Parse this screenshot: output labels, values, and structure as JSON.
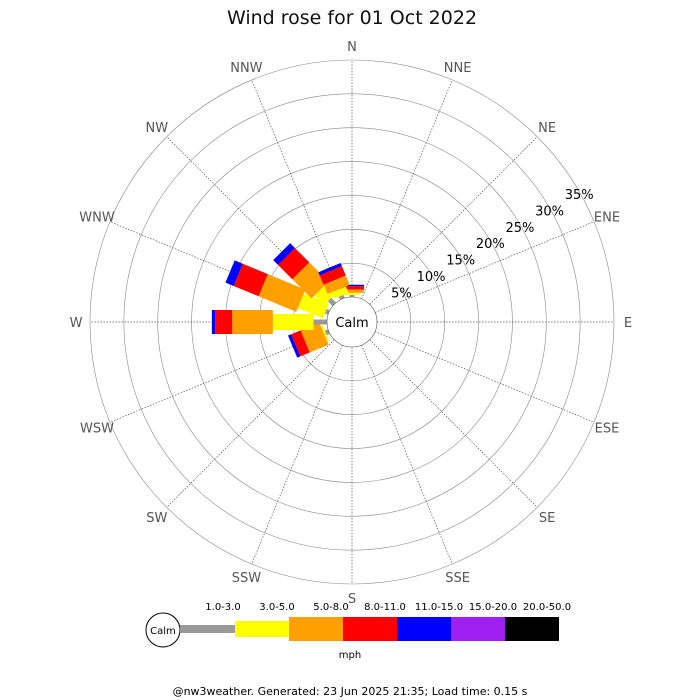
{
  "chart_data": {
    "type": "wind-rose",
    "title": "Wind rose for 01 Oct 2022",
    "directions": [
      "N",
      "NNE",
      "NE",
      "ENE",
      "E",
      "ESE",
      "SE",
      "SSE",
      "S",
      "SSW",
      "SW",
      "WSW",
      "W",
      "WNW",
      "NW",
      "NNW"
    ],
    "radial_ticks": [
      "5%",
      "10%",
      "15%",
      "20%",
      "25%",
      "30%",
      "35%"
    ],
    "radial_max_percent": 35,
    "calm_label": "Calm",
    "bins": [
      {
        "label": "1.0-3.0",
        "color": "#999999"
      },
      {
        "label": "3.0-5.0",
        "color": "#ffff00"
      },
      {
        "label": "5.0-8.0",
        "color": "#ff9f00"
      },
      {
        "label": "8.0-11.0",
        "color": "#ff0000"
      },
      {
        "label": "11.0-15.0",
        "color": "#0000ff"
      },
      {
        "label": "15.0-20.0",
        "color": "#9f20f0"
      },
      {
        "label": "20.0-50.0",
        "color": "#000000"
      }
    ],
    "series": [
      {
        "direction": "N",
        "percent": [
          0.3,
          0.3,
          0.5,
          0.5,
          0.2,
          0,
          0
        ]
      },
      {
        "direction": "NNE",
        "percent": [
          0,
          0,
          0,
          0,
          0,
          0,
          0
        ]
      },
      {
        "direction": "NE",
        "percent": [
          0,
          0,
          0,
          0,
          0,
          0,
          0
        ]
      },
      {
        "direction": "ENE",
        "percent": [
          0,
          0,
          0,
          0,
          0,
          0,
          0
        ]
      },
      {
        "direction": "E",
        "percent": [
          0,
          0,
          0,
          0,
          0,
          0,
          0
        ]
      },
      {
        "direction": "ESE",
        "percent": [
          0,
          0,
          0,
          0,
          0,
          0,
          0
        ]
      },
      {
        "direction": "SE",
        "percent": [
          0,
          0,
          0,
          0,
          0,
          0,
          0
        ]
      },
      {
        "direction": "SSE",
        "percent": [
          0,
          0,
          0,
          0,
          0,
          0,
          0
        ]
      },
      {
        "direction": "S",
        "percent": [
          0,
          0,
          0,
          0,
          0,
          0,
          0
        ]
      },
      {
        "direction": "SSW",
        "percent": [
          0,
          0,
          0,
          0,
          0,
          0,
          0
        ]
      },
      {
        "direction": "SW",
        "percent": [
          0,
          0,
          0,
          0,
          0,
          0,
          0
        ]
      },
      {
        "direction": "WSW",
        "percent": [
          0.5,
          0.3,
          3.0,
          1.5,
          0.5,
          0,
          0
        ]
      },
      {
        "direction": "W",
        "percent": [
          2.0,
          6.0,
          6.0,
          2.5,
          0.5,
          0,
          0
        ]
      },
      {
        "direction": "WNW",
        "percent": [
          0.5,
          4.0,
          6.0,
          4.0,
          1.3,
          0,
          0
        ]
      },
      {
        "direction": "NW",
        "percent": [
          1.0,
          2.0,
          4.0,
          3.0,
          1.0,
          0,
          0
        ]
      },
      {
        "direction": "NNW",
        "percent": [
          0.5,
          1.0,
          1.5,
          1.5,
          0.5,
          0,
          0
        ]
      }
    ],
    "legend_unit": "mph"
  },
  "footer": "@nw3weather. Generated: 23 Jun 2025 21:35; Load time: 0.15 s"
}
